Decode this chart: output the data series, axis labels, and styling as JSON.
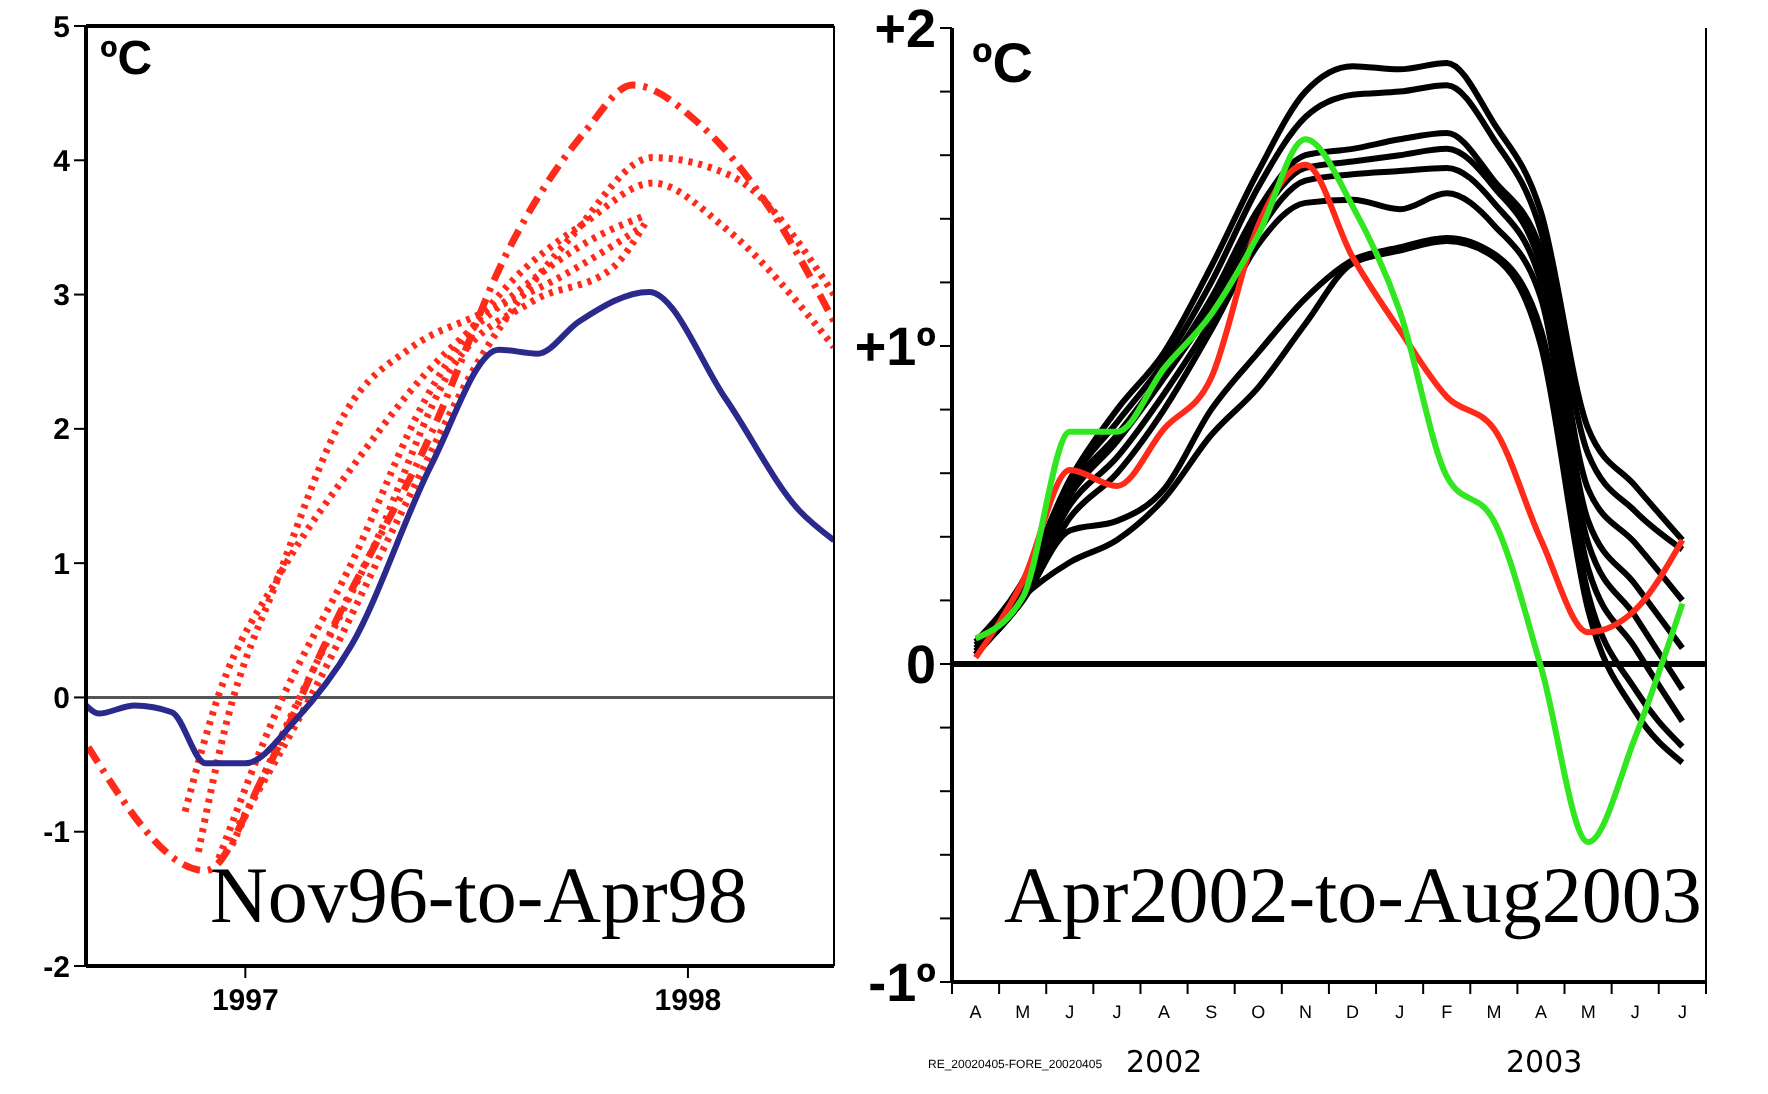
{
  "chart_data": [
    {
      "type": "line",
      "ylabel": "ºC",
      "annotations": [
        "Nov96-to-Apr98"
      ],
      "xlim": [
        1996.64,
        1998.33
      ],
      "xticks": [
        1997,
        1998
      ],
      "ylim": [
        -2,
        5
      ],
      "yticks": [
        -2,
        -1,
        0,
        1,
        2,
        3,
        4,
        5
      ],
      "marker": "none",
      "ref_lines": [
        {
          "axis": "y",
          "value": 0,
          "color": "#555555"
        }
      ],
      "series": [
        {
          "color": "#ff2a1a",
          "line_style": "dotted",
          "x": [
            1996.894,
            1996.955,
            1997.075,
            1997.226,
            1997.377,
            1997.528,
            1997.694,
            1997.89
          ],
          "values": [
            -1.15,
            -0.22,
            0.9,
            2.12,
            2.61,
            2.85,
            3.1,
            3.49
          ]
        },
        {
          "color": "#ff2a1a",
          "line_style": "dashed",
          "x": [
            1996.645,
            1996.91,
            1997.045,
            1997.196,
            1997.422,
            1997.588,
            1997.769,
            1997.875,
            1998.026,
            1998.177,
            1998.33
          ],
          "values": [
            -0.37,
            -1.29,
            -0.56,
            0.51,
            1.98,
            3.29,
            4.22,
            4.56,
            4.27,
            3.68,
            2.8
          ]
        },
        {
          "color": "#ff2a1a",
          "line_style": "dotted",
          "x": [
            1996.94,
            1997.075,
            1997.24,
            1997.407,
            1997.588,
            1997.769,
            1997.92,
            1998.086,
            1998.33
          ],
          "values": [
            -1.2,
            -0.07,
            1.0,
            2.22,
            3.05,
            3.54,
            3.83,
            3.49,
            2.61
          ]
        },
        {
          "color": "#ff2a1a",
          "line_style": "dotted",
          "x": [
            1996.97,
            1997.12,
            1997.287,
            1997.468,
            1997.649,
            1997.83,
            1997.905
          ],
          "values": [
            -1.1,
            -0.02,
            1.1,
            2.46,
            2.95,
            3.2,
            3.54
          ]
        },
        {
          "color": "#ff2a1a",
          "line_style": "dotted",
          "x": [
            1996.985,
            1997.15,
            1997.347,
            1997.528,
            1997.739,
            1997.92,
            1998.1,
            1998.33
          ],
          "values": [
            -0.95,
            0.02,
            1.34,
            2.51,
            3.44,
            4.02,
            3.88,
            3.0
          ]
        },
        {
          "color": "#ff2a1a",
          "line_style": "dotted",
          "x": [
            1996.864,
            1996.94,
            1997.075,
            1997.256,
            1997.407,
            1997.588,
            1997.799,
            1997.905
          ],
          "values": [
            -0.85,
            0.02,
            0.9,
            1.78,
            2.41,
            2.95,
            3.44,
            3.59
          ]
        },
        {
          "color": "#2b2a8c",
          "line_style": "solid",
          "x": [
            1996.64,
            1996.668,
            1996.75,
            1996.834,
            1996.91,
            1997.0,
            1997.113,
            1997.24,
            1997.42,
            1997.573,
            1997.66,
            1997.754,
            1997.912,
            1998.086,
            1998.252,
            1998.33
          ],
          "values": [
            -0.06,
            -0.12,
            -0.06,
            -0.11,
            -0.49,
            -0.49,
            -0.17,
            0.39,
            1.73,
            2.59,
            2.56,
            2.8,
            3.02,
            2.22,
            1.39,
            1.17
          ]
        }
      ]
    },
    {
      "type": "line",
      "ylabel": "ºC",
      "annotations": [
        "Apr2002-to-Aug2003",
        "RE_20020405-FORE_20020405",
        "2002",
        "2003"
      ],
      "categories": [
        "A",
        "M",
        "J",
        "J",
        "A",
        "S",
        "O",
        "N",
        "D",
        "J",
        "F",
        "M",
        "A",
        "M",
        "J",
        "J"
      ],
      "ylim": [
        -1,
        2
      ],
      "yticks": [
        {
          "value": -1,
          "label": "-1º"
        },
        {
          "value": -0.8,
          "label": null
        },
        {
          "value": -0.6,
          "label": null
        },
        {
          "value": -0.4,
          "label": null
        },
        {
          "value": -0.2,
          "label": null
        },
        {
          "value": 0,
          "label": "0"
        },
        {
          "value": 0.2,
          "label": null
        },
        {
          "value": 0.4,
          "label": null
        },
        {
          "value": 0.6,
          "label": null
        },
        {
          "value": 0.8,
          "label": null
        },
        {
          "value": 1,
          "label": "+1º"
        },
        {
          "value": 1.2,
          "label": null
        },
        {
          "value": 1.4,
          "label": null
        },
        {
          "value": 1.6,
          "label": null
        },
        {
          "value": 1.8,
          "label": null
        },
        {
          "value": 2,
          "label": "+2"
        }
      ],
      "marker": "none",
      "ref_lines": [
        {
          "axis": "y",
          "value": 0,
          "color": "#000000"
        }
      ],
      "series": [
        {
          "color": "#000000",
          "line_style": "solid",
          "values": [
            0.07,
            0.26,
            0.58,
            0.8,
            0.98,
            1.25,
            1.55,
            1.8,
            1.88,
            1.87,
            1.89,
            1.7,
            1.42,
            0.74,
            0.56,
            0.39
          ]
        },
        {
          "color": "#000000",
          "line_style": "solid",
          "values": [
            0.06,
            0.24,
            0.57,
            0.76,
            0.95,
            1.2,
            1.5,
            1.72,
            1.79,
            1.8,
            1.82,
            1.65,
            1.36,
            0.66,
            0.48,
            0.36
          ]
        },
        {
          "color": "#000000",
          "line_style": "solid",
          "values": [
            0.05,
            0.23,
            0.55,
            0.72,
            0.92,
            1.15,
            1.43,
            1.6,
            1.62,
            1.65,
            1.67,
            1.52,
            1.3,
            0.55,
            0.38,
            0.2
          ]
        },
        {
          "color": "#000000",
          "line_style": "solid",
          "values": [
            0.05,
            0.22,
            0.53,
            0.7,
            0.9,
            1.12,
            1.4,
            1.56,
            1.58,
            1.6,
            1.62,
            1.5,
            1.25,
            0.45,
            0.25,
            0.05
          ]
        },
        {
          "color": "#000000",
          "line_style": "solid",
          "values": [
            0.04,
            0.21,
            0.5,
            0.65,
            0.85,
            1.08,
            1.36,
            1.52,
            1.54,
            1.55,
            1.56,
            1.45,
            1.2,
            0.38,
            0.15,
            -0.08
          ]
        },
        {
          "color": "#000000",
          "line_style": "solid",
          "values": [
            0.04,
            0.2,
            0.46,
            0.6,
            0.8,
            1.05,
            1.32,
            1.45,
            1.46,
            1.43,
            1.48,
            1.38,
            1.15,
            0.3,
            0.05,
            -0.18
          ]
        },
        {
          "color": "#000000",
          "line_style": "solid",
          "values": [
            0.03,
            0.2,
            0.42,
            0.45,
            0.55,
            0.8,
            0.98,
            1.15,
            1.27,
            1.31,
            1.34,
            1.29,
            1.05,
            0.22,
            -0.08,
            -0.26
          ]
        },
        {
          "color": "#000000",
          "line_style": "solid",
          "values": [
            0.03,
            0.21,
            0.32,
            0.39,
            0.52,
            0.72,
            0.87,
            1.07,
            1.26,
            1.3,
            1.33,
            1.28,
            1.0,
            0.17,
            -0.15,
            -0.31
          ]
        },
        {
          "color": "#ff2a1a",
          "line_style": "solid",
          "values": [
            0.02,
            0.26,
            0.61,
            0.56,
            0.74,
            0.9,
            1.38,
            1.57,
            1.28,
            1.05,
            0.84,
            0.74,
            0.39,
            0.1,
            0.17,
            0.39
          ]
        },
        {
          "color": "#33e622",
          "line_style": "solid",
          "values": [
            0.08,
            0.21,
            0.73,
            0.73,
            0.93,
            1.1,
            1.35,
            1.65,
            1.44,
            1.11,
            0.59,
            0.45,
            -0.01,
            -0.56,
            -0.23,
            0.19
          ]
        }
      ]
    }
  ]
}
